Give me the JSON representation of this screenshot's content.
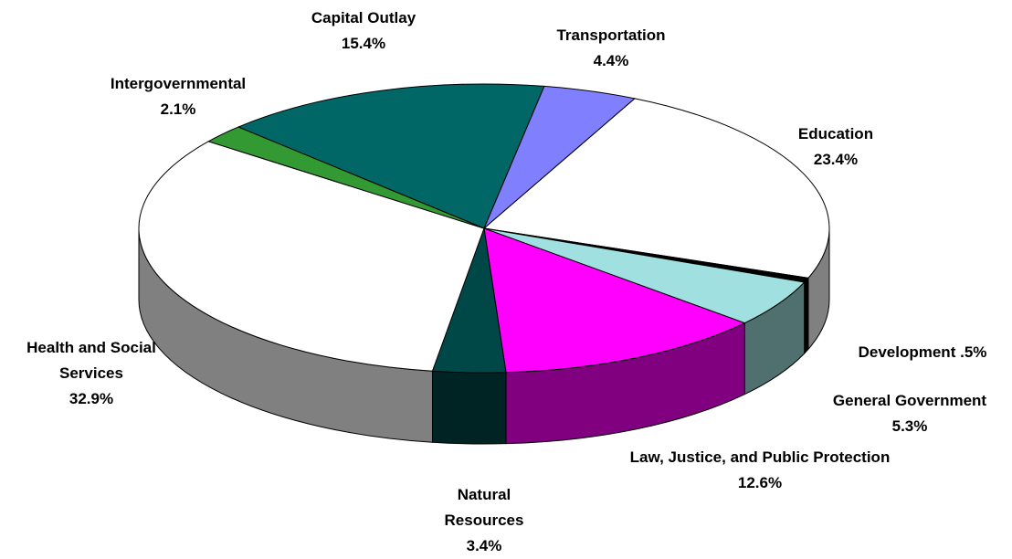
{
  "chart_data": {
    "type": "pie",
    "categories": [
      "Capital Outlay",
      "Transportation",
      "Education",
      "Development",
      "General Government",
      "Law, Justice, and Public Protection",
      "Natural Resources",
      "Health and Social Services",
      "Intergovernmental"
    ],
    "values": [
      15.4,
      4.4,
      23.4,
      0.5,
      5.3,
      12.6,
      3.4,
      32.9,
      2.1
    ],
    "value_labels": [
      "15.4%",
      "4.4%",
      "23.4%",
      ".5%",
      "5.3%",
      "12.6%",
      "3.4%",
      "32.9%",
      "2.1%"
    ],
    "colors": [
      "#006666",
      "#8080ff",
      "#ffffff",
      "#000000",
      "#a0e0e0",
      "#ff00ff",
      "#004848",
      "#ffffff",
      "#339933"
    ]
  }
}
